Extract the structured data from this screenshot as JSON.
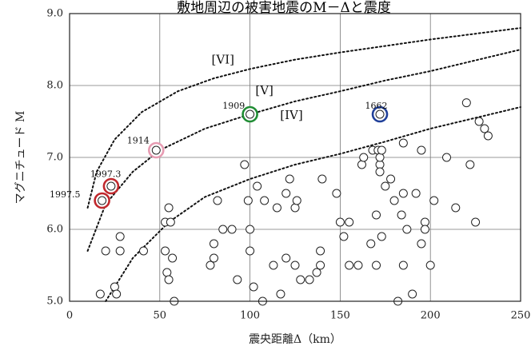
{
  "chart_data": {
    "type": "scatter",
    "title": "敷地周辺の被害地震のM－Δと震度",
    "xlabel": "震央距離Δ（km）",
    "ylabel": "マグニチュード M",
    "xlim": [
      0,
      250
    ],
    "ylim": [
      5.0,
      9.0
    ],
    "x_ticks": [
      "0",
      "50",
      "100",
      "150",
      "200",
      "250"
    ],
    "y_ticks": [
      "5.0",
      "6.0",
      "7.0",
      "8.0",
      "9.0"
    ],
    "grid": true,
    "intensity_curves": [
      {
        "label": "[VI]",
        "points": [
          [
            10,
            6.3
          ],
          [
            15,
            6.8
          ],
          [
            25,
            7.25
          ],
          [
            40,
            7.63
          ],
          [
            60,
            7.92
          ],
          [
            80,
            8.1
          ],
          [
            100,
            8.23
          ],
          [
            125,
            8.36
          ],
          [
            150,
            8.46
          ],
          [
            175,
            8.55
          ],
          [
            200,
            8.64
          ],
          [
            225,
            8.72
          ],
          [
            250,
            8.8
          ]
        ]
      },
      {
        "label": "[V]",
        "points": [
          [
            10,
            5.7
          ],
          [
            20,
            6.35
          ],
          [
            35,
            6.8
          ],
          [
            50,
            7.1
          ],
          [
            75,
            7.4
          ],
          [
            100,
            7.6
          ],
          [
            125,
            7.78
          ],
          [
            150,
            7.92
          ],
          [
            175,
            8.07
          ],
          [
            200,
            8.2
          ],
          [
            225,
            8.35
          ],
          [
            250,
            8.5
          ]
        ]
      },
      {
        "label": "[IV]",
        "points": [
          [
            20,
            5.0
          ],
          [
            35,
            5.6
          ],
          [
            55,
            6.1
          ],
          [
            75,
            6.45
          ],
          [
            100,
            6.7
          ],
          [
            125,
            6.9
          ],
          [
            150,
            7.05
          ],
          [
            175,
            7.22
          ],
          [
            200,
            7.4
          ],
          [
            225,
            7.55
          ],
          [
            250,
            7.7
          ]
        ]
      }
    ],
    "highlighted": [
      {
        "label": "1997.5",
        "x": 18,
        "y": 6.4,
        "color": "#c0282d"
      },
      {
        "label": "1997.3",
        "x": 23,
        "y": 6.6,
        "color": "#c0282d"
      },
      {
        "label": "1914",
        "x": 48,
        "y": 7.1,
        "color": "#e79bb2"
      },
      {
        "label": "1909",
        "x": 100,
        "y": 7.6,
        "color": "#1f8c33"
      },
      {
        "label": "1662",
        "x": 172,
        "y": 7.6,
        "color": "#1f3f99"
      }
    ],
    "points": [
      [
        17,
        5.1
      ],
      [
        20,
        5.7
      ],
      [
        25,
        5.2
      ],
      [
        26,
        5.1
      ],
      [
        28,
        5.9
      ],
      [
        28,
        5.7
      ],
      [
        41,
        5.7
      ],
      [
        53,
        6.1
      ],
      [
        53,
        5.7
      ],
      [
        54,
        5.4
      ],
      [
        55,
        6.3
      ],
      [
        56,
        6.1
      ],
      [
        55,
        5.3
      ],
      [
        57,
        5.6
      ],
      [
        58,
        5.0
      ],
      [
        78,
        5.5
      ],
      [
        80,
        5.6
      ],
      [
        80,
        5.8
      ],
      [
        82,
        6.4
      ],
      [
        85,
        6.0
      ],
      [
        90,
        6.0
      ],
      [
        93,
        5.3
      ],
      [
        97,
        6.9
      ],
      [
        99,
        6.4
      ],
      [
        100,
        6.0
      ],
      [
        100,
        5.7
      ],
      [
        102,
        5.2
      ],
      [
        104,
        6.6
      ],
      [
        107,
        5.0
      ],
      [
        108,
        6.4
      ],
      [
        113,
        5.5
      ],
      [
        115,
        6.3
      ],
      [
        117,
        5.1
      ],
      [
        120,
        6.5
      ],
      [
        120,
        5.6
      ],
      [
        122,
        6.7
      ],
      [
        125,
        5.5
      ],
      [
        125,
        6.3
      ],
      [
        126,
        6.4
      ],
      [
        128,
        5.3
      ],
      [
        133,
        5.3
      ],
      [
        137,
        5.4
      ],
      [
        139,
        5.5
      ],
      [
        139,
        5.7
      ],
      [
        140,
        6.7
      ],
      [
        148,
        6.5
      ],
      [
        150,
        6.1
      ],
      [
        152,
        5.9
      ],
      [
        155,
        6.1
      ],
      [
        155,
        5.5
      ],
      [
        160,
        5.5
      ],
      [
        162,
        6.9
      ],
      [
        163,
        7.0
      ],
      [
        167,
        5.8
      ],
      [
        168,
        7.1
      ],
      [
        170,
        5.5
      ],
      [
        170,
        6.2
      ],
      [
        171,
        7.1
      ],
      [
        172,
        6.9
      ],
      [
        172,
        7.0
      ],
      [
        172,
        6.8
      ],
      [
        173,
        7.1
      ],
      [
        173,
        5.9
      ],
      [
        175,
        6.6
      ],
      [
        178,
        6.7
      ],
      [
        180,
        6.4
      ],
      [
        182,
        5.0
      ],
      [
        184,
        6.2
      ],
      [
        185,
        5.5
      ],
      [
        185,
        6.5
      ],
      [
        185,
        7.2
      ],
      [
        187,
        6.0
      ],
      [
        190,
        5.1
      ],
      [
        192,
        6.5
      ],
      [
        195,
        5.8
      ],
      [
        195,
        7.1
      ],
      [
        197,
        6.1
      ],
      [
        197,
        6.0
      ],
      [
        200,
        5.5
      ],
      [
        202,
        6.4
      ],
      [
        209,
        7.0
      ],
      [
        214,
        6.3
      ],
      [
        220,
        7.76
      ],
      [
        222,
        6.9
      ],
      [
        225,
        6.1
      ],
      [
        227,
        7.5
      ],
      [
        230,
        7.4
      ],
      [
        232,
        7.3
      ]
    ]
  }
}
